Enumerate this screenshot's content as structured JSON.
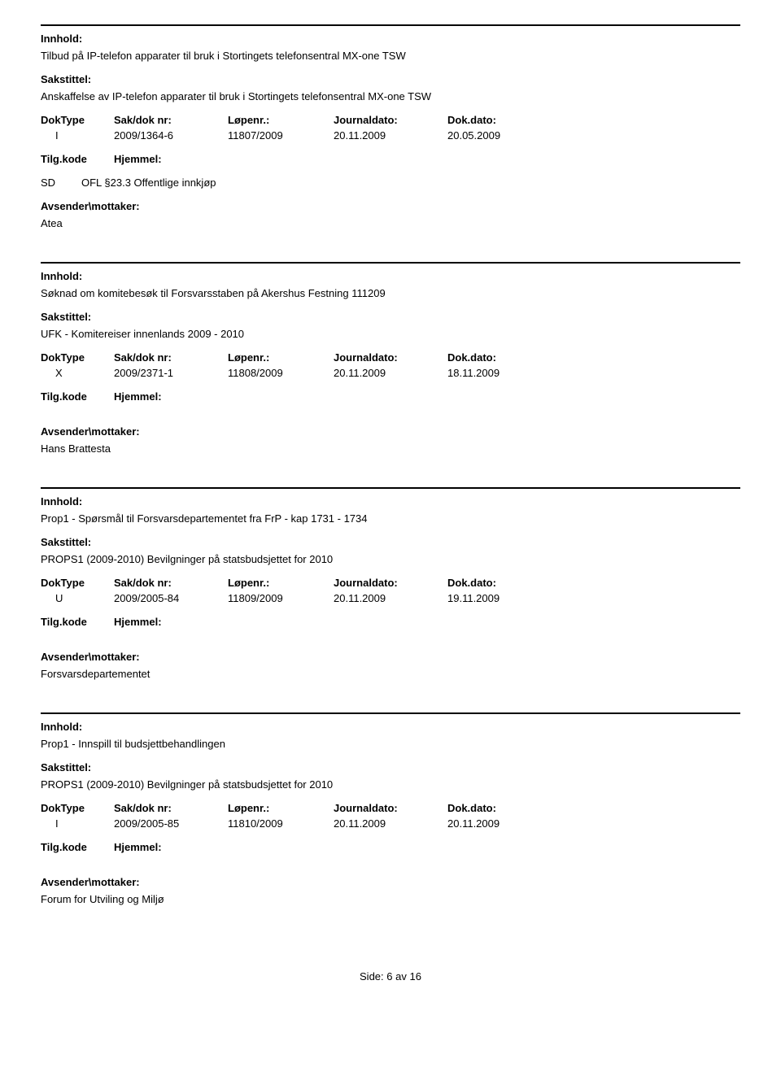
{
  "labels": {
    "innhold": "Innhold:",
    "sakstittel": "Sakstittel:",
    "doktype": "DokType",
    "saknr": "Sak/dok nr:",
    "lopenr": "Løpenr.:",
    "journaldato": "Journaldato:",
    "dokdato": "Dok.dato:",
    "tilgkode": "Tilg.kode",
    "hjemmel": "Hjemmel:",
    "avsender": "Avsender\\mottaker:"
  },
  "entries": [
    {
      "innhold": "Tilbud på IP-telefon apparater til bruk i Stortingets telefonsentral MX-one TSW",
      "sakstittel": "Anskaffelse av IP-telefon apparater til bruk i Stortingets telefonsentral MX-one TSW",
      "doktype": "I",
      "saknr": "2009/1364-6",
      "lopenr": "11807/2009",
      "journaldato": "20.11.2009",
      "dokdato": "20.05.2009",
      "tilgkode": "SD",
      "hjemmel": "OFL §23.3 Offentlige innkjøp",
      "avsender": "Atea"
    },
    {
      "innhold": "Søknad om komitebesøk til Forsvarsstaben på Akershus Festning 111209",
      "sakstittel": "UFK - Komitereiser innenlands 2009 - 2010",
      "doktype": "X",
      "saknr": "2009/2371-1",
      "lopenr": "11808/2009",
      "journaldato": "20.11.2009",
      "dokdato": "18.11.2009",
      "tilgkode": "",
      "hjemmel": "",
      "avsender": "Hans Brattesta"
    },
    {
      "innhold": "Prop1 - Spørsmål til Forsvarsdepartementet fra FrP - kap 1731 - 1734",
      "sakstittel": "PROPS1 (2009-2010) Bevilgninger på statsbudsjettet for 2010",
      "doktype": "U",
      "saknr": "2009/2005-84",
      "lopenr": "11809/2009",
      "journaldato": "20.11.2009",
      "dokdato": "19.11.2009",
      "tilgkode": "",
      "hjemmel": "",
      "avsender": "Forsvarsdepartementet"
    },
    {
      "innhold": "Prop1 - Innspill til budsjettbehandlingen",
      "sakstittel": "PROPS1 (2009-2010) Bevilgninger på statsbudsjettet for 2010",
      "doktype": "I",
      "saknr": "2009/2005-85",
      "lopenr": "11810/2009",
      "journaldato": "20.11.2009",
      "dokdato": "20.11.2009",
      "tilgkode": "",
      "hjemmel": "",
      "avsender": "Forum for Utviling og Miljø"
    }
  ],
  "footer": {
    "side_label": "Side:",
    "page": "6",
    "av": "av",
    "total": "16"
  }
}
